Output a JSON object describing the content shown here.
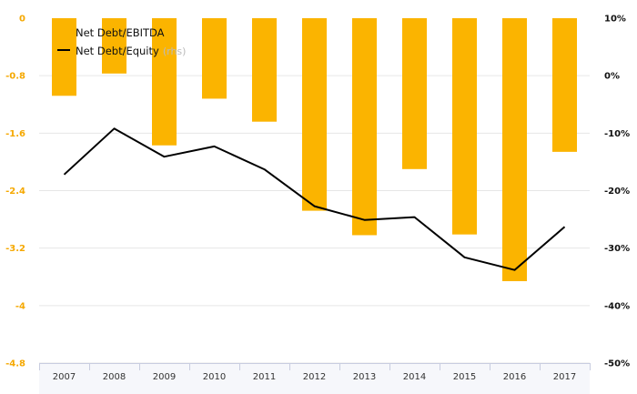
{
  "chart_data": {
    "type": "bar",
    "categories": [
      "2007",
      "2008",
      "2009",
      "2010",
      "2011",
      "2012",
      "2013",
      "2014",
      "2015",
      "2016",
      "2017"
    ],
    "series": [
      {
        "name": "Net Debt/EBITDA",
        "type": "bar",
        "axis": "left",
        "color": "#fbb400",
        "values": [
          -1.08,
          -0.77,
          -1.77,
          -1.12,
          -1.44,
          -2.68,
          -3.02,
          -2.1,
          -3.01,
          -3.66,
          -1.86
        ]
      },
      {
        "name": "Net Debt/Equity",
        "name_suffix": "(rhs)",
        "type": "line",
        "axis": "right",
        "color": "#000000",
        "values": [
          -17.2,
          -9.2,
          -14.1,
          -12.3,
          -16.3,
          -22.7,
          -25.1,
          -24.6,
          -31.6,
          -33.8,
          -26.3
        ]
      }
    ],
    "y_left": {
      "ylim": [
        -4.8,
        0
      ],
      "ticks": [
        0,
        -0.8,
        -1.6,
        -2.4,
        -3.2,
        -4,
        -4.8
      ],
      "tick_labels": [
        "0",
        "-0.8",
        "-1.6",
        "-2.4",
        "-3.2",
        "-4",
        "-4.8"
      ],
      "tick_color": "#f5a800"
    },
    "y_right": {
      "ylim": [
        -50,
        10
      ],
      "ticks": [
        10,
        0,
        -10,
        -20,
        -30,
        -40,
        -50
      ],
      "tick_labels": [
        "10%",
        "0%",
        "-10%",
        "-20%",
        "-30%",
        "-40%",
        "-50%"
      ],
      "tick_color": "#111111"
    },
    "grid": true,
    "legend_position": "top-left",
    "title": "",
    "xlabel": "",
    "ylabel": ""
  }
}
